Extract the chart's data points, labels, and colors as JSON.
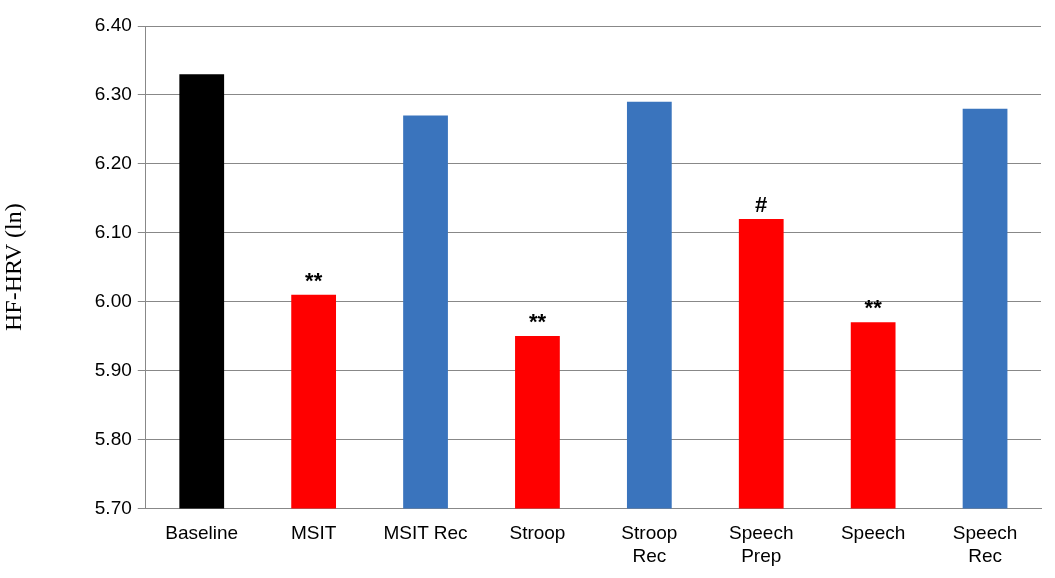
{
  "chart_data": {
    "type": "bar",
    "ylabel": "HF-HRV (ln)",
    "categories": [
      "Baseline",
      "MSIT",
      "MSIT Rec",
      "Stroop",
      "Stroop Rec",
      "Speech Prep",
      "Speech",
      "Speech Rec"
    ],
    "values": [
      6.33,
      6.01,
      6.27,
      5.95,
      6.29,
      6.12,
      5.97,
      6.28
    ],
    "colors": [
      "#000000",
      "#ff0000",
      "#3a74bd",
      "#ff0000",
      "#3a74bd",
      "#ff0000",
      "#ff0000",
      "#3a74bd"
    ],
    "ylim": [
      5.7,
      6.4
    ],
    "yticks": [
      {
        "value": 5.7,
        "label": "5.70"
      },
      {
        "value": 5.8,
        "label": "5.80"
      },
      {
        "value": 5.9,
        "label": "5.90"
      },
      {
        "value": 6.0,
        "label": "6.00"
      },
      {
        "value": 6.1,
        "label": "6.10"
      },
      {
        "value": 6.2,
        "label": "6.20"
      },
      {
        "value": 6.3,
        "label": "6.30"
      },
      {
        "value": 6.4,
        "label": "6.40"
      }
    ],
    "grid": "y",
    "legend": false,
    "annotations": [
      {
        "text": "**",
        "x": "MSIT",
        "y": 6.01
      },
      {
        "text": "**",
        "x": "Stroop",
        "y": 5.95
      },
      {
        "text": "#",
        "x": "Speech Prep",
        "y": 6.12
      },
      {
        "text": "**",
        "x": "Speech",
        "y": 5.97
      }
    ]
  }
}
